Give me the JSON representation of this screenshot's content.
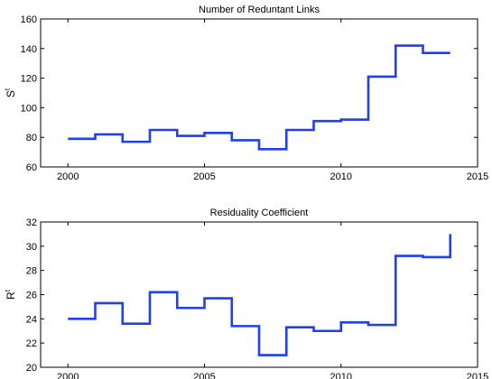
{
  "chart_data": [
    {
      "type": "line",
      "step": true,
      "title": "Number of Reduntant Links",
      "xlabel": "",
      "ylabel": "S",
      "ylabel_superscript": "t",
      "xlim": [
        1999,
        2015
      ],
      "ylim": [
        60,
        160
      ],
      "xticks": [
        "2000",
        "2005",
        "2010",
        "2015"
      ],
      "yticks": [
        "60",
        "80",
        "100",
        "120",
        "140",
        "160"
      ],
      "grid": false,
      "color": "#1f3ff0",
      "series": [
        {
          "x": [
            2000,
            2001,
            2002,
            2003,
            2004,
            2005,
            2006,
            2007,
            2008,
            2009,
            2010,
            2011,
            2012,
            2013,
            2014
          ],
          "y": [
            79,
            82,
            77,
            85,
            81,
            83,
            78,
            72,
            85,
            91,
            92,
            121,
            142,
            137,
            137
          ]
        }
      ]
    },
    {
      "type": "line",
      "step": true,
      "title": "Residuality Coefficient",
      "xlabel": "",
      "ylabel": "R",
      "ylabel_superscript": "t",
      "xlim": [
        1999,
        2015
      ],
      "ylim": [
        20,
        32
      ],
      "xticks": [
        "2000",
        "2005",
        "2010",
        "2015"
      ],
      "yticks": [
        "20",
        "22",
        "24",
        "26",
        "28",
        "30",
        "32"
      ],
      "grid": false,
      "color": "#1f3ff0",
      "series": [
        {
          "x": [
            2000,
            2001,
            2002,
            2003,
            2004,
            2005,
            2006,
            2007,
            2008,
            2009,
            2010,
            2011,
            2012,
            2013,
            2014
          ],
          "y": [
            24.0,
            25.3,
            23.6,
            26.2,
            24.9,
            25.7,
            23.4,
            21.0,
            23.3,
            23.0,
            23.7,
            23.5,
            29.2,
            29.1,
            31.0
          ]
        }
      ]
    }
  ]
}
